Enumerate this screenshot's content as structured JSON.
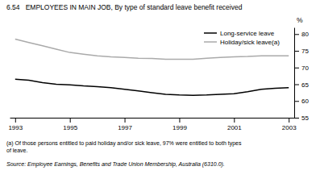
{
  "chart_data": {
    "type": "line",
    "title": "6.54   EMPLOYEES IN MAIN JOB, By type of standard leave benefit received",
    "y_label": "%",
    "x": [
      1993,
      1993.5,
      1994,
      1994.5,
      1995,
      1995.5,
      1996,
      1996.5,
      1997,
      1997.5,
      1998,
      1998.5,
      1999,
      1999.5,
      2000,
      2000.5,
      2001,
      2001.5,
      2002,
      2002.5,
      2003
    ],
    "series": [
      {
        "name": "Long-service leave",
        "color": "#000000",
        "values": [
          66.5,
          66.2,
          65.5,
          65.0,
          64.8,
          64.5,
          64.3,
          64.0,
          63.5,
          63.0,
          62.5,
          62.0,
          61.8,
          61.7,
          61.8,
          62.0,
          62.2,
          62.8,
          63.5,
          63.8,
          64.0
        ]
      },
      {
        "name": "Holiday/sick leave(a)",
        "color": "#aaaaaa",
        "values": [
          78.5,
          77.5,
          76.5,
          75.5,
          74.5,
          74.0,
          73.5,
          73.2,
          73.0,
          72.8,
          72.7,
          72.5,
          72.5,
          72.5,
          72.8,
          73.0,
          73.2,
          73.3,
          73.5,
          73.5,
          73.5
        ]
      }
    ],
    "xlim": [
      1992.8,
      2003.2
    ],
    "xticks": [
      1993,
      1995,
      1997,
      1999,
      2001,
      2003
    ],
    "ylim": [
      55,
      82
    ],
    "yticks": [
      55,
      60,
      65,
      70,
      75,
      80
    ],
    "grid": false,
    "legend": "upper right",
    "notes": [
      "(a) Of those persons entitled to paid holiday and/or sick leave, 97% were entitled to both types",
      "of leave."
    ],
    "source": "Source: Employee Earnings, Benefits and Trade Union Membership, Australia (6310.0)."
  }
}
